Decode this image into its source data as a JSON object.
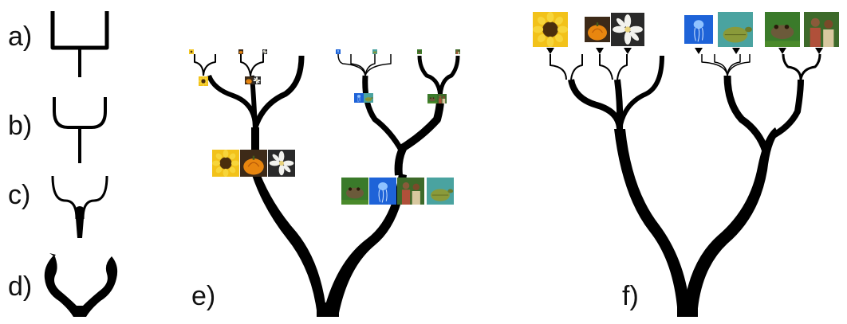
{
  "figure": {
    "panels": [
      {
        "id": "a",
        "label": "a)",
        "style": "orthogonal-branch"
      },
      {
        "id": "b",
        "label": "b)",
        "style": "rounded-branch"
      },
      {
        "id": "c",
        "label": "c)",
        "style": "curved-taper-branch"
      },
      {
        "id": "d",
        "label": "d)",
        "style": "organic-branch"
      },
      {
        "id": "e",
        "label": "e)",
        "style": "tree-with-inline-thumbnails"
      },
      {
        "id": "f",
        "label": "f)",
        "style": "tree-with-leaf-thumbnails"
      }
    ],
    "thumbnails": {
      "sunflower": {
        "color_a": "#f2c21a",
        "color_b": "#5a3a10",
        "icon": "sunflower-icon"
      },
      "pumpkin": {
        "color_a": "#e8860f",
        "color_b": "#3d2a18",
        "icon": "pumpkin-icon"
      },
      "daffodil": {
        "color_a": "#f2f2ee",
        "color_b": "#2a2a2a",
        "icon": "white-flower-icon"
      },
      "jellyfish": {
        "color_a": "#1e63d8",
        "color_b": "#8fc2ff",
        "icon": "jellyfish-icon"
      },
      "turtle": {
        "color_a": "#4aa3a0",
        "color_b": "#8a9a3a",
        "icon": "sea-turtle-icon"
      },
      "frog": {
        "color_a": "#6b5a3a",
        "color_b": "#3a7a2a",
        "icon": "frog-icon"
      },
      "people": {
        "color_a": "#3d6a2a",
        "color_b": "#b0503a",
        "icon": "people-icon"
      }
    },
    "colors": {
      "branch": "#000000",
      "background": "#ffffff"
    }
  }
}
